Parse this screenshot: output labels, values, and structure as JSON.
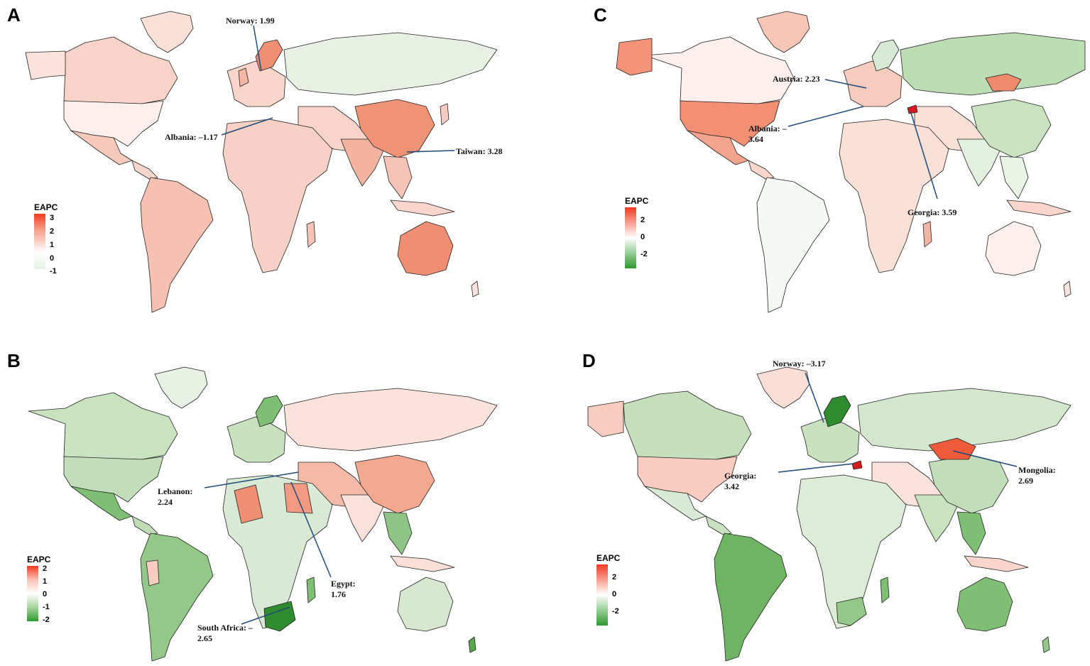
{
  "panels": [
    {
      "id": "A",
      "legend": {
        "title": "EAPC",
        "ticks": [
          "3",
          "2",
          "1",
          "0",
          "-1"
        ],
        "colors": [
          "#f03b20",
          "#f8a08a",
          "#ffffff",
          "#e5f0e0"
        ]
      },
      "annotations": [
        {
          "name": "norway",
          "lines": [
            "Norway: 1.99"
          ]
        },
        {
          "name": "albania",
          "lines": [
            "Albania: –1.17"
          ]
        },
        {
          "name": "taiwan",
          "lines": [
            "Taiwan: 3.28"
          ]
        }
      ]
    },
    {
      "id": "B",
      "legend": {
        "title": "EAPC",
        "ticks": [
          "2",
          "1",
          "0",
          "-1",
          "-2"
        ],
        "colors": [
          "#f03b20",
          "#fbc3b5",
          "#ffffff",
          "#a7d39d",
          "#2e9a2e"
        ]
      },
      "annotations": [
        {
          "name": "lebanon",
          "lines": [
            "Lebanon:",
            "2.24"
          ]
        },
        {
          "name": "egypt",
          "lines": [
            "Egypt:",
            "1.76"
          ]
        },
        {
          "name": "south-africa",
          "lines": [
            "South Africa: –",
            "2.65"
          ]
        }
      ]
    },
    {
      "id": "C",
      "legend": {
        "title": "EAPC",
        "ticks": [
          "2",
          "0",
          "-2"
        ],
        "colors": [
          "#f03b20",
          "#ffffff",
          "#2e9a2e"
        ]
      },
      "annotations": [
        {
          "name": "austria",
          "lines": [
            "Austria: 2.23"
          ]
        },
        {
          "name": "albania",
          "lines": [
            "Albania: –",
            "3.64"
          ]
        },
        {
          "name": "georgia",
          "lines": [
            "Georgia: 3.59"
          ]
        }
      ]
    },
    {
      "id": "D",
      "legend": {
        "title": "EAPC",
        "ticks": [
          "2",
          "0",
          "-2"
        ],
        "colors": [
          "#f03b20",
          "#ffffff",
          "#2e9a2e"
        ]
      },
      "annotations": [
        {
          "name": "norway",
          "lines": [
            "Norway: –3.17"
          ]
        },
        {
          "name": "georgia",
          "lines": [
            "Georgia:",
            "3.42"
          ]
        },
        {
          "name": "mongolia",
          "lines": [
            "Mongolia:",
            "2.69"
          ]
        }
      ]
    }
  ]
}
